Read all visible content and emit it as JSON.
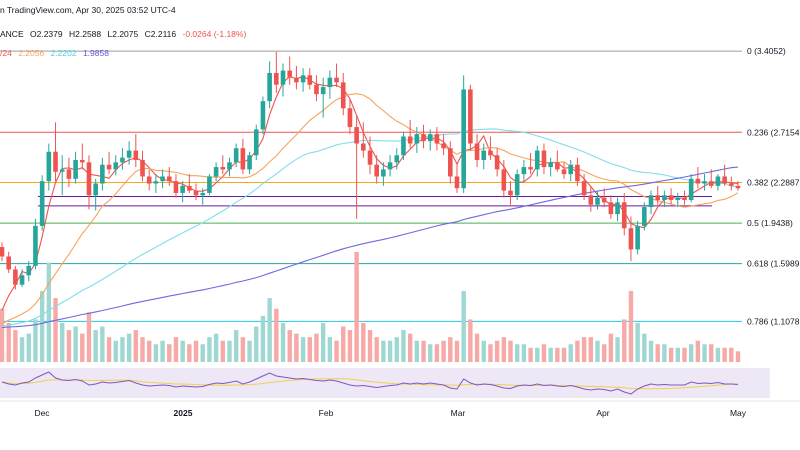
{
  "header": {
    "source_text": "n TradingView.com, Apr 30, 2025 03:52 UTC-4",
    "ohlc_prefix": "ANCE",
    "open": "O2.2379",
    "high": "H2.2588",
    "low": "L2.2075",
    "close": "C2.2116",
    "change": "-0.0264 (-1.18%)",
    "ma_prefix": "/24",
    "ma_values": [
      "2.2056",
      "2.2202",
      "1.9858"
    ]
  },
  "colors": {
    "up": "#26a69a",
    "down": "#ef5350",
    "ma_fast": "#ef5350",
    "ma_mid": "#f7a35c",
    "ma_cyan": "#80deea",
    "ma_slow": "#6f69e0",
    "fib_0": "#9e9e9e",
    "fib_236": "#ef5350",
    "fib_382": "#f5a623",
    "fib_5": "#4caf50",
    "fib_618": "#26a69a",
    "fib_786": "#26c6da",
    "channel": "#6a1b9a",
    "rsi": "#7e57c2",
    "rsi_ma": "#f0d050",
    "rsi_band": "#ede7f6"
  },
  "chart_data": {
    "type": "candlestick",
    "date_labels": [
      "Dec",
      "2025",
      "Feb",
      "Mar",
      "Apr",
      "May"
    ],
    "fib_levels": [
      {
        "label": "0 (3.4052)",
        "value": 3.4052
      },
      {
        "label": "0.236 (2.7154",
        "value": 2.7154
      },
      {
        "label": "0.382 (2.2887",
        "value": 2.2887
      },
      {
        "label": "0.5 (1.9438)",
        "value": 1.9438
      },
      {
        "label": "0.618 (1.5989",
        "value": 1.5989
      },
      {
        "label": "0.786 (1.1078",
        "value": 1.1078
      }
    ],
    "channel_levels": [
      2.17,
      2.09
    ],
    "ylim": [
      0.95,
      3.5
    ],
    "candles": [
      [
        1.74,
        1.78,
        1.62,
        1.66
      ],
      [
        1.66,
        1.7,
        1.52,
        1.55
      ],
      [
        1.55,
        1.58,
        1.38,
        1.42
      ],
      [
        1.42,
        1.55,
        1.4,
        1.5
      ],
      [
        1.5,
        1.62,
        1.45,
        1.58
      ],
      [
        1.58,
        1.98,
        1.55,
        1.92
      ],
      [
        1.92,
        2.35,
        1.88,
        2.3
      ],
      [
        2.3,
        2.62,
        2.22,
        2.55
      ],
      [
        2.55,
        2.8,
        2.3,
        2.38
      ],
      [
        2.38,
        2.52,
        2.18,
        2.4
      ],
      [
        2.4,
        2.5,
        2.25,
        2.32
      ],
      [
        2.32,
        2.55,
        2.28,
        2.48
      ],
      [
        2.48,
        2.62,
        2.4,
        2.46
      ],
      [
        2.46,
        2.52,
        2.06,
        2.18
      ],
      [
        2.18,
        2.32,
        2.05,
        2.28
      ],
      [
        2.28,
        2.5,
        2.22,
        2.44
      ],
      [
        2.44,
        2.55,
        2.36,
        2.4
      ],
      [
        2.4,
        2.52,
        2.35,
        2.46
      ],
      [
        2.46,
        2.58,
        2.4,
        2.5
      ],
      [
        2.5,
        2.64,
        2.44,
        2.56
      ],
      [
        2.56,
        2.7,
        2.42,
        2.48
      ],
      [
        2.48,
        2.56,
        2.3,
        2.34
      ],
      [
        2.34,
        2.4,
        2.22,
        2.28
      ],
      [
        2.28,
        2.36,
        2.2,
        2.3
      ],
      [
        2.3,
        2.4,
        2.24,
        2.34
      ],
      [
        2.34,
        2.42,
        2.26,
        2.3
      ],
      [
        2.3,
        2.36,
        2.16,
        2.2
      ],
      [
        2.2,
        2.3,
        2.12,
        2.26
      ],
      [
        2.26,
        2.36,
        2.2,
        2.22
      ],
      [
        2.22,
        2.28,
        2.14,
        2.18
      ],
      [
        2.18,
        2.24,
        2.1,
        2.2
      ],
      [
        2.2,
        2.36,
        2.18,
        2.34
      ],
      [
        2.34,
        2.46,
        2.3,
        2.42
      ],
      [
        2.42,
        2.52,
        2.36,
        2.4
      ],
      [
        2.4,
        2.5,
        2.34,
        2.46
      ],
      [
        2.46,
        2.62,
        2.42,
        2.58
      ],
      [
        2.58,
        2.66,
        2.36,
        2.4
      ],
      [
        2.4,
        2.55,
        2.36,
        2.52
      ],
      [
        2.52,
        2.78,
        2.48,
        2.74
      ],
      [
        2.74,
        3.02,
        2.7,
        2.98
      ],
      [
        2.98,
        3.32,
        2.92,
        3.22
      ],
      [
        3.22,
        3.4,
        3.05,
        3.12
      ],
      [
        3.12,
        3.3,
        3.02,
        3.24
      ],
      [
        3.24,
        3.36,
        3.12,
        3.18
      ],
      [
        3.18,
        3.28,
        3.08,
        3.14
      ],
      [
        3.14,
        3.26,
        3.06,
        3.2
      ],
      [
        3.2,
        3.26,
        3.08,
        3.12
      ],
      [
        3.12,
        3.2,
        2.98,
        3.04
      ],
      [
        3.04,
        3.18,
        2.84,
        3.1
      ],
      [
        3.1,
        3.24,
        3.0,
        3.18
      ],
      [
        3.18,
        3.3,
        3.1,
        3.14
      ],
      [
        3.14,
        3.22,
        2.86,
        2.92
      ],
      [
        2.92,
        3.0,
        2.7,
        2.76
      ],
      [
        2.76,
        2.86,
        1.98,
        2.62
      ],
      [
        2.62,
        2.8,
        2.5,
        2.56
      ],
      [
        2.56,
        2.68,
        2.36,
        2.44
      ],
      [
        2.44,
        2.52,
        2.28,
        2.34
      ],
      [
        2.34,
        2.46,
        2.26,
        2.4
      ],
      [
        2.4,
        2.52,
        2.34,
        2.46
      ],
      [
        2.46,
        2.58,
        2.4,
        2.52
      ],
      [
        2.52,
        2.72,
        2.48,
        2.68
      ],
      [
        2.68,
        2.82,
        2.58,
        2.62
      ],
      [
        2.62,
        2.76,
        2.54,
        2.7
      ],
      [
        2.7,
        2.78,
        2.58,
        2.64
      ],
      [
        2.64,
        2.74,
        2.56,
        2.7
      ],
      [
        2.7,
        2.76,
        2.56,
        2.62
      ],
      [
        2.62,
        2.7,
        2.52,
        2.58
      ],
      [
        2.58,
        2.64,
        2.28,
        2.34
      ],
      [
        2.34,
        2.46,
        2.2,
        2.24
      ],
      [
        2.24,
        3.2,
        2.2,
        3.08
      ],
      [
        3.08,
        3.12,
        2.56,
        2.62
      ],
      [
        2.62,
        2.7,
        2.42,
        2.48
      ],
      [
        2.48,
        2.62,
        2.4,
        2.56
      ],
      [
        2.56,
        2.68,
        2.48,
        2.52
      ],
      [
        2.52,
        2.58,
        2.34,
        2.4
      ],
      [
        2.4,
        2.48,
        2.16,
        2.22
      ],
      [
        2.22,
        2.3,
        2.1,
        2.18
      ],
      [
        2.18,
        2.4,
        2.14,
        2.36
      ],
      [
        2.36,
        2.48,
        2.3,
        2.42
      ],
      [
        2.42,
        2.54,
        2.36,
        2.4
      ],
      [
        2.4,
        2.6,
        2.34,
        2.56
      ],
      [
        2.56,
        2.62,
        2.36,
        2.42
      ],
      [
        2.42,
        2.5,
        2.34,
        2.46
      ],
      [
        2.46,
        2.56,
        2.38,
        2.4
      ],
      [
        2.4,
        2.46,
        2.32,
        2.36
      ],
      [
        2.36,
        2.48,
        2.3,
        2.44
      ],
      [
        2.44,
        2.5,
        2.26,
        2.3
      ],
      [
        2.3,
        2.36,
        2.14,
        2.18
      ],
      [
        2.18,
        2.26,
        2.04,
        2.1
      ],
      [
        2.1,
        2.22,
        2.06,
        2.16
      ],
      [
        2.16,
        2.24,
        2.08,
        2.12
      ],
      [
        2.12,
        2.18,
        1.98,
        2.02
      ],
      [
        2.02,
        2.16,
        1.96,
        2.12
      ],
      [
        2.12,
        2.2,
        1.84,
        1.9
      ],
      [
        1.9,
        2.0,
        1.62,
        1.72
      ],
      [
        1.72,
        1.96,
        1.68,
        1.92
      ],
      [
        1.92,
        2.12,
        1.88,
        2.08
      ],
      [
        2.08,
        2.22,
        2.02,
        2.18
      ],
      [
        2.18,
        2.26,
        2.1,
        2.14
      ],
      [
        2.14,
        2.22,
        2.08,
        2.18
      ],
      [
        2.18,
        2.24,
        2.1,
        2.14
      ],
      [
        2.14,
        2.2,
        2.08,
        2.16
      ],
      [
        2.16,
        2.22,
        2.1,
        2.14
      ],
      [
        2.14,
        2.36,
        2.12,
        2.32
      ],
      [
        2.32,
        2.42,
        2.24,
        2.28
      ],
      [
        2.28,
        2.36,
        2.22,
        2.3
      ],
      [
        2.3,
        2.4,
        2.24,
        2.26
      ],
      [
        2.26,
        2.36,
        2.22,
        2.34
      ],
      [
        2.34,
        2.44,
        2.26,
        2.28
      ],
      [
        2.28,
        2.34,
        2.22,
        2.26
      ],
      [
        2.26,
        2.3,
        2.22,
        2.24
      ]
    ],
    "volumes": [
      30,
      22,
      18,
      14,
      16,
      24,
      40,
      56,
      36,
      22,
      18,
      20,
      16,
      28,
      18,
      20,
      14,
      12,
      14,
      16,
      18,
      14,
      12,
      10,
      12,
      10,
      14,
      12,
      10,
      12,
      10,
      14,
      16,
      12,
      12,
      18,
      14,
      12,
      20,
      26,
      36,
      30,
      22,
      18,
      16,
      14,
      14,
      16,
      22,
      14,
      12,
      20,
      18,
      62,
      22,
      18,
      14,
      12,
      12,
      14,
      18,
      16,
      12,
      12,
      10,
      10,
      12,
      14,
      12,
      40,
      24,
      16,
      12,
      10,
      12,
      14,
      12,
      10,
      10,
      8,
      8,
      10,
      8,
      8,
      8,
      10,
      12,
      14,
      14,
      12,
      10,
      16,
      14,
      24,
      40,
      22,
      16,
      12,
      10,
      10,
      8,
      8,
      8,
      10,
      12,
      10,
      10,
      8,
      8,
      8,
      6
    ],
    "rsi": [
      52,
      48,
      46,
      50,
      52,
      60,
      66,
      72,
      60,
      56,
      55,
      57,
      54,
      46,
      48,
      52,
      50,
      51,
      53,
      55,
      50,
      46,
      44,
      45,
      46,
      45,
      42,
      44,
      43,
      42,
      43,
      47,
      50,
      49,
      51,
      54,
      48,
      52,
      58,
      64,
      70,
      64,
      62,
      60,
      58,
      59,
      57,
      55,
      54,
      56,
      54,
      50,
      46,
      44,
      45,
      43,
      41,
      43,
      45,
      46,
      50,
      48,
      50,
      48,
      50,
      48,
      46,
      40,
      38,
      58,
      50,
      46,
      48,
      47,
      44,
      40,
      39,
      44,
      46,
      45,
      48,
      45,
      46,
      44,
      43,
      45,
      42,
      38,
      36,
      38,
      37,
      34,
      38,
      32,
      28,
      38,
      44,
      48,
      46,
      47,
      46,
      46,
      46,
      52,
      49,
      50,
      49,
      51,
      48,
      48,
      47
    ]
  }
}
